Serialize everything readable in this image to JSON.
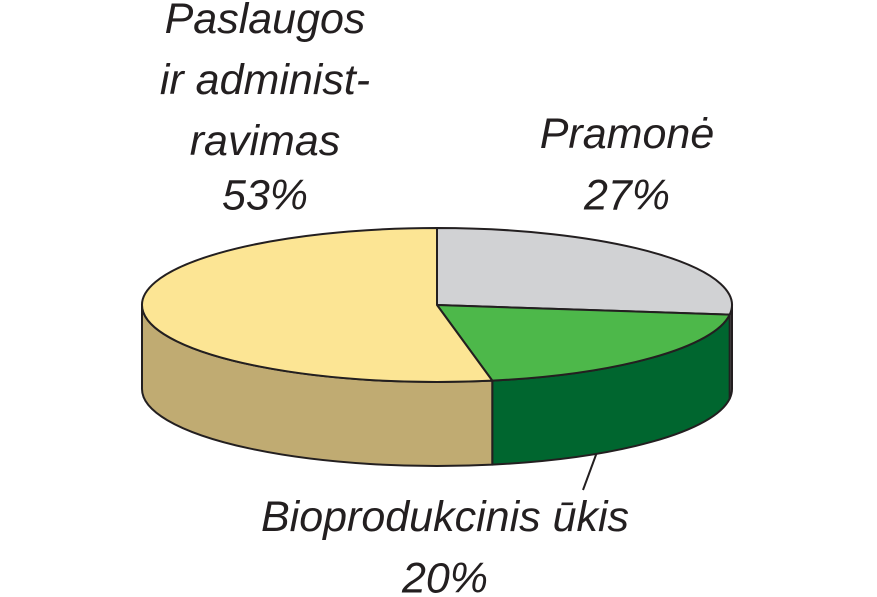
{
  "chart_data": {
    "type": "pie3d",
    "categories": [
      "Pramonė",
      "Bioprodukcinis ūkis",
      "Paslaugos\nir administ-\nravimas"
    ],
    "values": [
      27,
      20,
      53
    ],
    "value_labels": [
      "27%",
      "20%",
      "53%"
    ],
    "colors": [
      "#d1d2d4",
      "#4db84a",
      "#fce594"
    ],
    "side_colors": [
      "#9d9ea0",
      "#00662f",
      "#c0ab72"
    ]
  }
}
